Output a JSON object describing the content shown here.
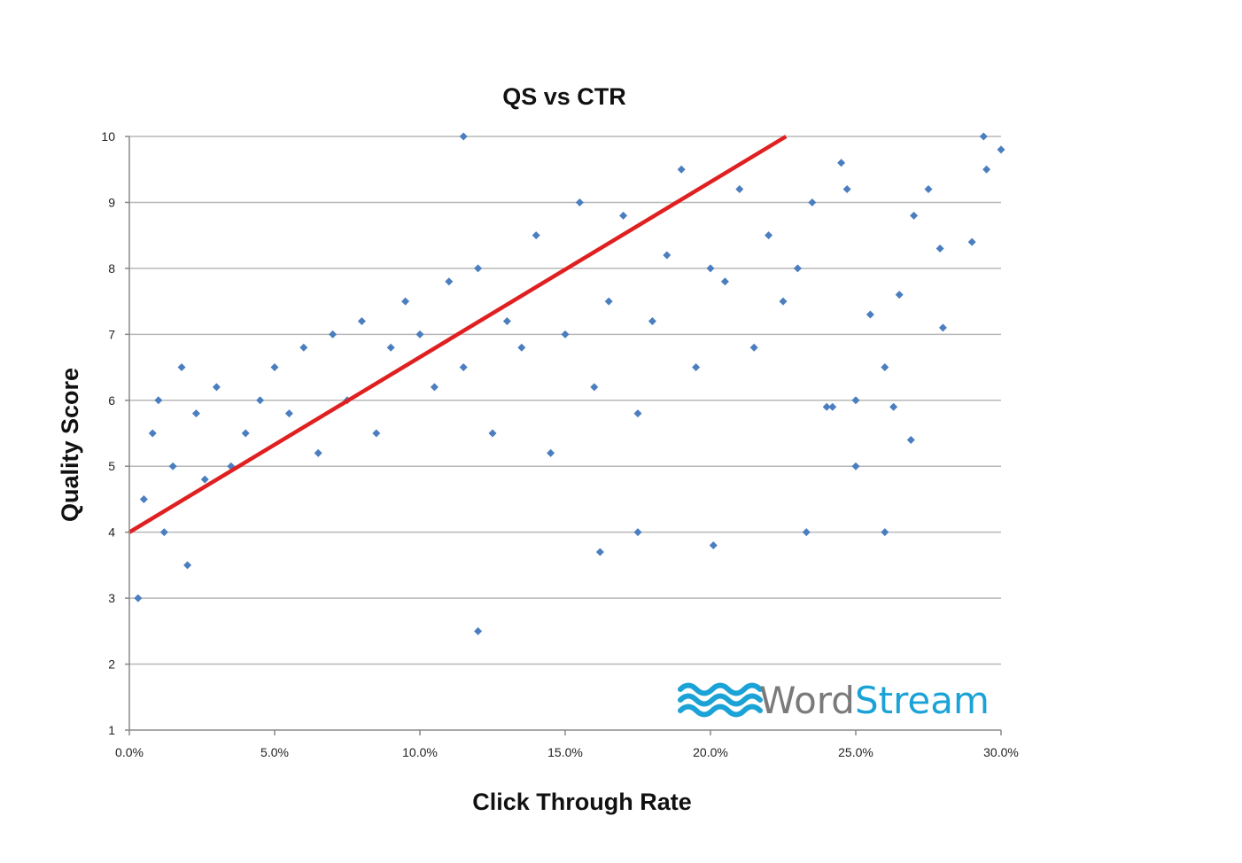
{
  "chart_data": {
    "type": "scatter",
    "title": "QS vs CTR",
    "xlabel": "Click Through Rate",
    "ylabel": "Quality Score",
    "xlim": [
      0,
      30
    ],
    "ylim": [
      1,
      10
    ],
    "x_ticks": [
      "0.0%",
      "5.0%",
      "10.0%",
      "15.0%",
      "20.0%",
      "25.0%",
      "30.0%"
    ],
    "y_ticks": [
      "1",
      "2",
      "3",
      "4",
      "5",
      "6",
      "7",
      "8",
      "9",
      "10"
    ],
    "grid": "horizontal",
    "series": [
      {
        "marker": "diamond",
        "color": "#4a7ebf",
        "x": [
          0.3,
          0.5,
          0.8,
          1.0,
          1.2,
          1.5,
          1.8,
          2.0,
          2.3,
          2.6,
          3.0,
          3.5,
          4.0,
          4.5,
          5.0,
          5.5,
          6.0,
          6.5,
          7.0,
          7.5,
          8.0,
          8.5,
          9.0,
          9.5,
          10.0,
          10.5,
          11.0,
          11.5,
          12.0,
          12.5,
          13.0,
          13.5,
          14.0,
          14.5,
          15.0,
          15.5,
          16.0,
          16.5,
          17.0,
          17.5,
          18.0,
          18.5,
          19.0,
          19.5,
          20.0,
          20.5,
          21.0,
          21.5,
          22.0,
          22.5,
          23.0,
          23.5,
          24.0,
          24.5,
          25.0,
          25.5,
          26.0,
          26.5,
          27.0,
          27.5,
          28.0,
          29.0,
          29.5,
          30.0,
          12.0,
          16.2,
          20.1,
          24.2,
          24.7,
          25.0,
          26.0,
          26.3,
          26.9,
          27.9,
          29.4,
          23.3,
          17.5,
          11.5
        ],
        "y": [
          3.0,
          4.5,
          5.5,
          6.0,
          4.0,
          5.0,
          6.5,
          3.5,
          5.8,
          4.8,
          6.2,
          5.0,
          5.5,
          6.0,
          6.5,
          5.8,
          6.8,
          5.2,
          7.0,
          6.0,
          7.2,
          5.5,
          6.8,
          7.5,
          7.0,
          6.2,
          7.8,
          6.5,
          8.0,
          5.5,
          7.2,
          6.8,
          8.5,
          5.2,
          7.0,
          9.0,
          6.2,
          7.5,
          8.8,
          5.8,
          7.2,
          8.2,
          9.5,
          6.5,
          8.0,
          7.8,
          9.2,
          6.8,
          8.5,
          7.5,
          8.0,
          9.0,
          5.9,
          9.6,
          5.0,
          7.3,
          6.5,
          7.6,
          8.8,
          9.2,
          7.1,
          8.4,
          9.5,
          9.8,
          2.5,
          3.7,
          3.8,
          5.9,
          9.2,
          6.0,
          4.0,
          5.9,
          5.4,
          8.3,
          10.0,
          4.0,
          4.0,
          10.0
        ]
      }
    ],
    "trendline": {
      "color": "#e02020",
      "x": [
        0,
        22.6
      ],
      "y": [
        4.0,
        10.0
      ]
    }
  },
  "watermark": {
    "brand_word_part1": "Word",
    "brand_word_part2": "Stream",
    "color_part1": "#7a7a7a",
    "color_part2": "#1ba2d6",
    "icon": "wave-logo-icon"
  }
}
